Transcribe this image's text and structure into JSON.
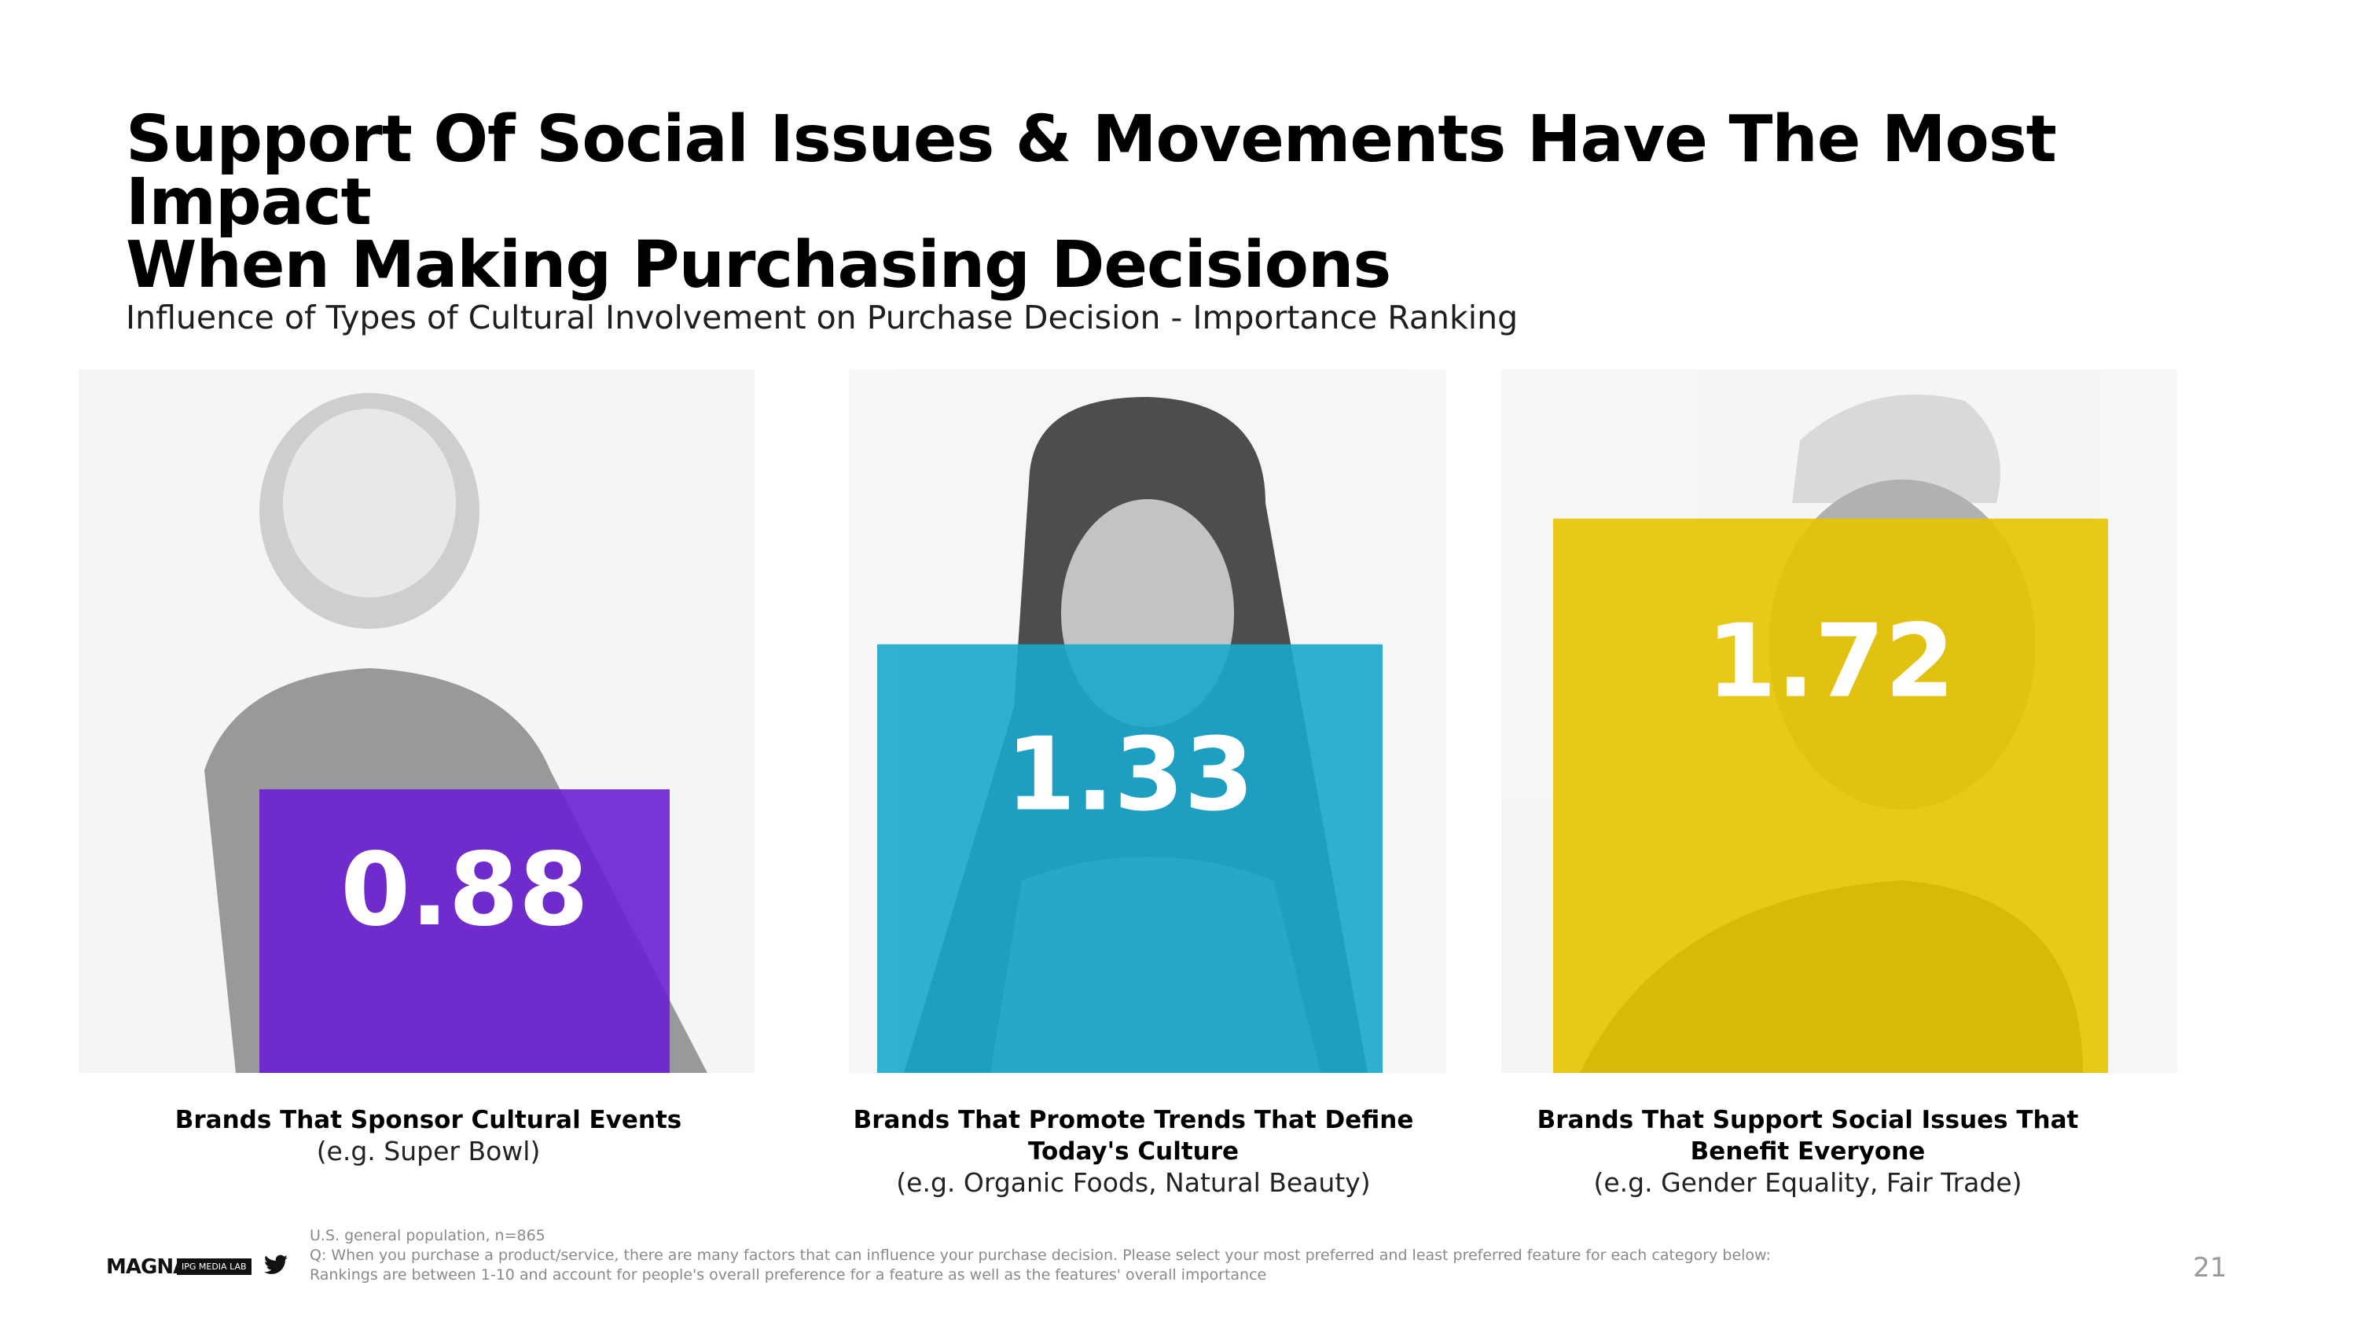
{
  "title": {
    "line1": "Support Of Social Issues & Movements Have The Most Impact",
    "line2": "When Making Purchasing Decisions"
  },
  "subtitle": "Influence of Types of Cultural Involvement on Purchase Decision - Importance Ranking",
  "chart_data": {
    "type": "bar",
    "title": "Influence of Types of Cultural Involvement on Purchase Decision - Importance Ranking",
    "categories": [
      "Brands That Sponsor Cultural Events",
      "Brands That Promote Trends That Define Today's Culture",
      "Brands That Support Social Issues That Benefit Everyone"
    ],
    "values": [
      0.88,
      1.33,
      1.72
    ],
    "value_labels": [
      "0.88",
      "1.33",
      "1.72"
    ],
    "colors": [
      "#6a1fd0",
      "#1aa8cf",
      "#e8c400"
    ],
    "xlabel": "",
    "ylabel": "",
    "ylim": [
      0,
      2.5
    ],
    "grid": false,
    "legend": "none"
  },
  "categories": [
    {
      "title": "Brands That Sponsor Cultural Events",
      "example": "(e.g. Super Bowl)"
    },
    {
      "title_line1": "Brands That Promote Trends That Define",
      "title_line2": "Today's Culture",
      "example": "(e.g. Organic Foods, Natural Beauty)"
    },
    {
      "title_line1": "Brands That Support Social Issues That",
      "title_line2": "Benefit Everyone",
      "example": "(e.g. Gender Equality, Fair Trade)"
    }
  ],
  "footer": {
    "line1": "U.S. general population, n=865",
    "line2": "Q: When you purchase a product/service, there are many factors that can influence your purchase decision. Please select your most preferred and least preferred feature for each category below:",
    "line3": "Rankings are between 1-10 and account for people's overall preference for a feature as well as the features' overall importance"
  },
  "logo": {
    "brand": "MAGNA",
    "lab": "IPG MEDIA LAB",
    "icon": "twitter-bird-icon"
  },
  "page_number": "21"
}
